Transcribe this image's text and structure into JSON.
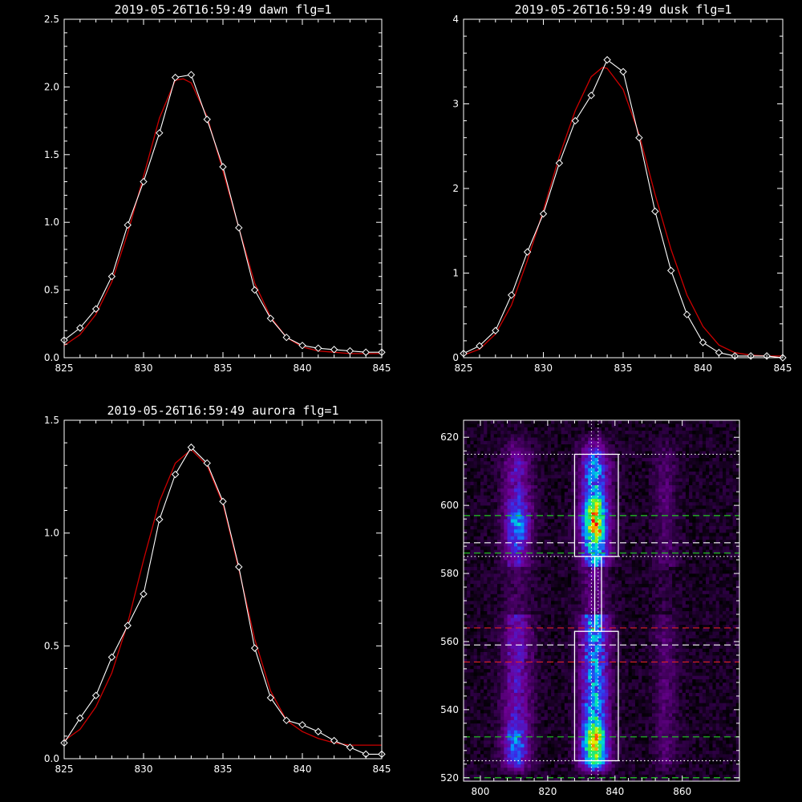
{
  "chart_data": [
    {
      "type": "line",
      "title": "2019-05-26T16:59:49 dawn flg=1",
      "xlim": [
        825,
        845
      ],
      "ylim": [
        0,
        2.5
      ],
      "xticks": [
        "825",
        "830",
        "835",
        "840",
        "845"
      ],
      "yticks": [
        "0.0",
        "0.5",
        "1.0",
        "1.5",
        "2.0",
        "2.5"
      ],
      "series": [
        {
          "kind": "measured",
          "color": "#ffffff",
          "marker": "diamond",
          "x": [
            825,
            826,
            827,
            828,
            829,
            830,
            831,
            832,
            833,
            834,
            835,
            836,
            837,
            838,
            839,
            840,
            841,
            842,
            843,
            844,
            845
          ],
          "y": [
            0.13,
            0.22,
            0.36,
            0.6,
            0.98,
            1.3,
            1.66,
            2.07,
            2.09,
            1.76,
            1.41,
            0.96,
            0.5,
            0.29,
            0.15,
            0.09,
            0.07,
            0.06,
            0.05,
            0.04,
            0.04
          ]
        },
        {
          "kind": "fit",
          "color": "#cc0000",
          "x": [
            825,
            826,
            827,
            828,
            829,
            830,
            831,
            832,
            832.5,
            833,
            834,
            835,
            836,
            837,
            838,
            839,
            840,
            841,
            842,
            843,
            844,
            845
          ],
          "y": [
            0.09,
            0.17,
            0.32,
            0.56,
            0.92,
            1.34,
            1.77,
            2.05,
            2.06,
            2.03,
            1.78,
            1.38,
            0.96,
            0.55,
            0.3,
            0.15,
            0.08,
            0.05,
            0.04,
            0.03,
            0.03,
            0.03
          ]
        }
      ]
    },
    {
      "type": "line",
      "title": "2019-05-26T16:59:49 dusk flg=1",
      "xlim": [
        825,
        845
      ],
      "ylim": [
        0,
        4
      ],
      "xticks": [
        "825",
        "830",
        "835",
        "840",
        "845"
      ],
      "yticks": [
        "0",
        "1",
        "2",
        "3",
        "4"
      ],
      "series": [
        {
          "kind": "measured",
          "color": "#ffffff",
          "marker": "diamond",
          "x": [
            825,
            826,
            827,
            828,
            829,
            830,
            831,
            832,
            833,
            834,
            835,
            836,
            837,
            838,
            839,
            840,
            841,
            842,
            843,
            844,
            845
          ],
          "y": [
            0.05,
            0.14,
            0.32,
            0.74,
            1.25,
            1.7,
            2.3,
            2.8,
            3.1,
            3.52,
            3.38,
            2.6,
            1.73,
            1.03,
            0.51,
            0.18,
            0.06,
            0.02,
            0.02,
            0.02,
            0.0
          ]
        },
        {
          "kind": "fit",
          "color": "#cc0000",
          "x": [
            825,
            826,
            827,
            828,
            829,
            830,
            831,
            832,
            833,
            833.7,
            834,
            835,
            836,
            837,
            838,
            839,
            840,
            841,
            842,
            843,
            844,
            845
          ],
          "y": [
            0.03,
            0.1,
            0.28,
            0.62,
            1.15,
            1.74,
            2.38,
            2.92,
            3.32,
            3.43,
            3.42,
            3.17,
            2.64,
            1.93,
            1.28,
            0.74,
            0.37,
            0.15,
            0.06,
            0.03,
            0.02,
            0.02
          ]
        }
      ]
    },
    {
      "type": "line",
      "title": "2019-05-26T16:59:49 aurora flg=1",
      "xlim": [
        825,
        845
      ],
      "ylim": [
        0,
        1.5
      ],
      "xticks": [
        "825",
        "830",
        "835",
        "840",
        "845"
      ],
      "yticks": [
        "0.0",
        "0.5",
        "1.0",
        "1.5"
      ],
      "series": [
        {
          "kind": "measured",
          "color": "#ffffff",
          "marker": "diamond",
          "x": [
            825,
            826,
            827,
            828,
            829,
            830,
            831,
            832,
            833,
            834,
            835,
            836,
            837,
            838,
            839,
            840,
            841,
            842,
            843,
            844,
            845
          ],
          "y": [
            0.07,
            0.18,
            0.28,
            0.45,
            0.59,
            0.73,
            1.06,
            1.26,
            1.38,
            1.31,
            1.14,
            0.85,
            0.49,
            0.27,
            0.17,
            0.15,
            0.12,
            0.08,
            0.05,
            0.02,
            0.02
          ]
        },
        {
          "kind": "fit",
          "color": "#cc0000",
          "x": [
            825,
            826,
            827,
            828,
            829,
            830,
            831,
            832,
            833,
            834,
            835,
            836,
            837,
            838,
            839,
            840,
            841,
            842,
            843,
            844,
            845
          ],
          "y": [
            0.08,
            0.13,
            0.23,
            0.38,
            0.6,
            0.88,
            1.14,
            1.31,
            1.37,
            1.3,
            1.13,
            0.84,
            0.53,
            0.3,
            0.17,
            0.12,
            0.09,
            0.07,
            0.06,
            0.06,
            0.06
          ]
        }
      ]
    },
    {
      "type": "heatmap",
      "colormap": "rainbow",
      "xlim": [
        795,
        877
      ],
      "ylim": [
        519,
        625
      ],
      "xticks": [
        "800",
        "820",
        "840",
        "860"
      ],
      "yticks": [
        "520",
        "540",
        "560",
        "580",
        "600",
        "620"
      ],
      "emission_columns": [
        {
          "x": 811,
          "width": 10,
          "intensity": 0.55
        },
        {
          "x": 834,
          "width": 10,
          "intensity": 1.0
        },
        {
          "x": 855,
          "width": 8,
          "intensity": 0.25
        }
      ],
      "hot_spots": [
        {
          "x": 811,
          "y": 595,
          "intensity": 0.55
        },
        {
          "x": 834,
          "y": 595,
          "intensity": 1.0
        },
        {
          "x": 834,
          "y": 530,
          "intensity": 0.95
        },
        {
          "x": 810,
          "y": 530,
          "intensity": 0.5
        }
      ],
      "boxes": [
        {
          "x0": 828,
          "x1": 841,
          "y0": 585,
          "y1": 615
        },
        {
          "x0": 828,
          "x1": 841,
          "y0": 525,
          "y1": 563
        }
      ],
      "connector": {
        "x0": 834,
        "x1": 836,
        "y0": 563,
        "y1": 585
      },
      "hlines": [
        {
          "y": 615,
          "color": "#ffffff",
          "style": "dotted"
        },
        {
          "y": 597,
          "color": "#22cc22",
          "style": "dashed"
        },
        {
          "y": 589,
          "color": "#ffffff",
          "style": "dashed"
        },
        {
          "y": 586,
          "color": "#22cc22",
          "style": "dashed"
        },
        {
          "y": 585,
          "color": "#ffffff",
          "style": "dotted"
        },
        {
          "y": 564,
          "color": "#dd2222",
          "style": "dashed"
        },
        {
          "y": 559,
          "color": "#ffffff",
          "style": "dashed"
        },
        {
          "y": 554,
          "color": "#dd2222",
          "style": "dashed"
        },
        {
          "y": 532,
          "color": "#22cc22",
          "style": "dashed"
        },
        {
          "y": 525,
          "color": "#ffffff",
          "style": "dotted"
        },
        {
          "y": 520,
          "color": "#22cc22",
          "style": "dashed"
        }
      ],
      "vlines": [
        {
          "x": 833,
          "color": "#ffffff",
          "style": "dotted"
        },
        {
          "x": 835,
          "color": "#ffffff",
          "style": "dotted"
        }
      ]
    }
  ]
}
